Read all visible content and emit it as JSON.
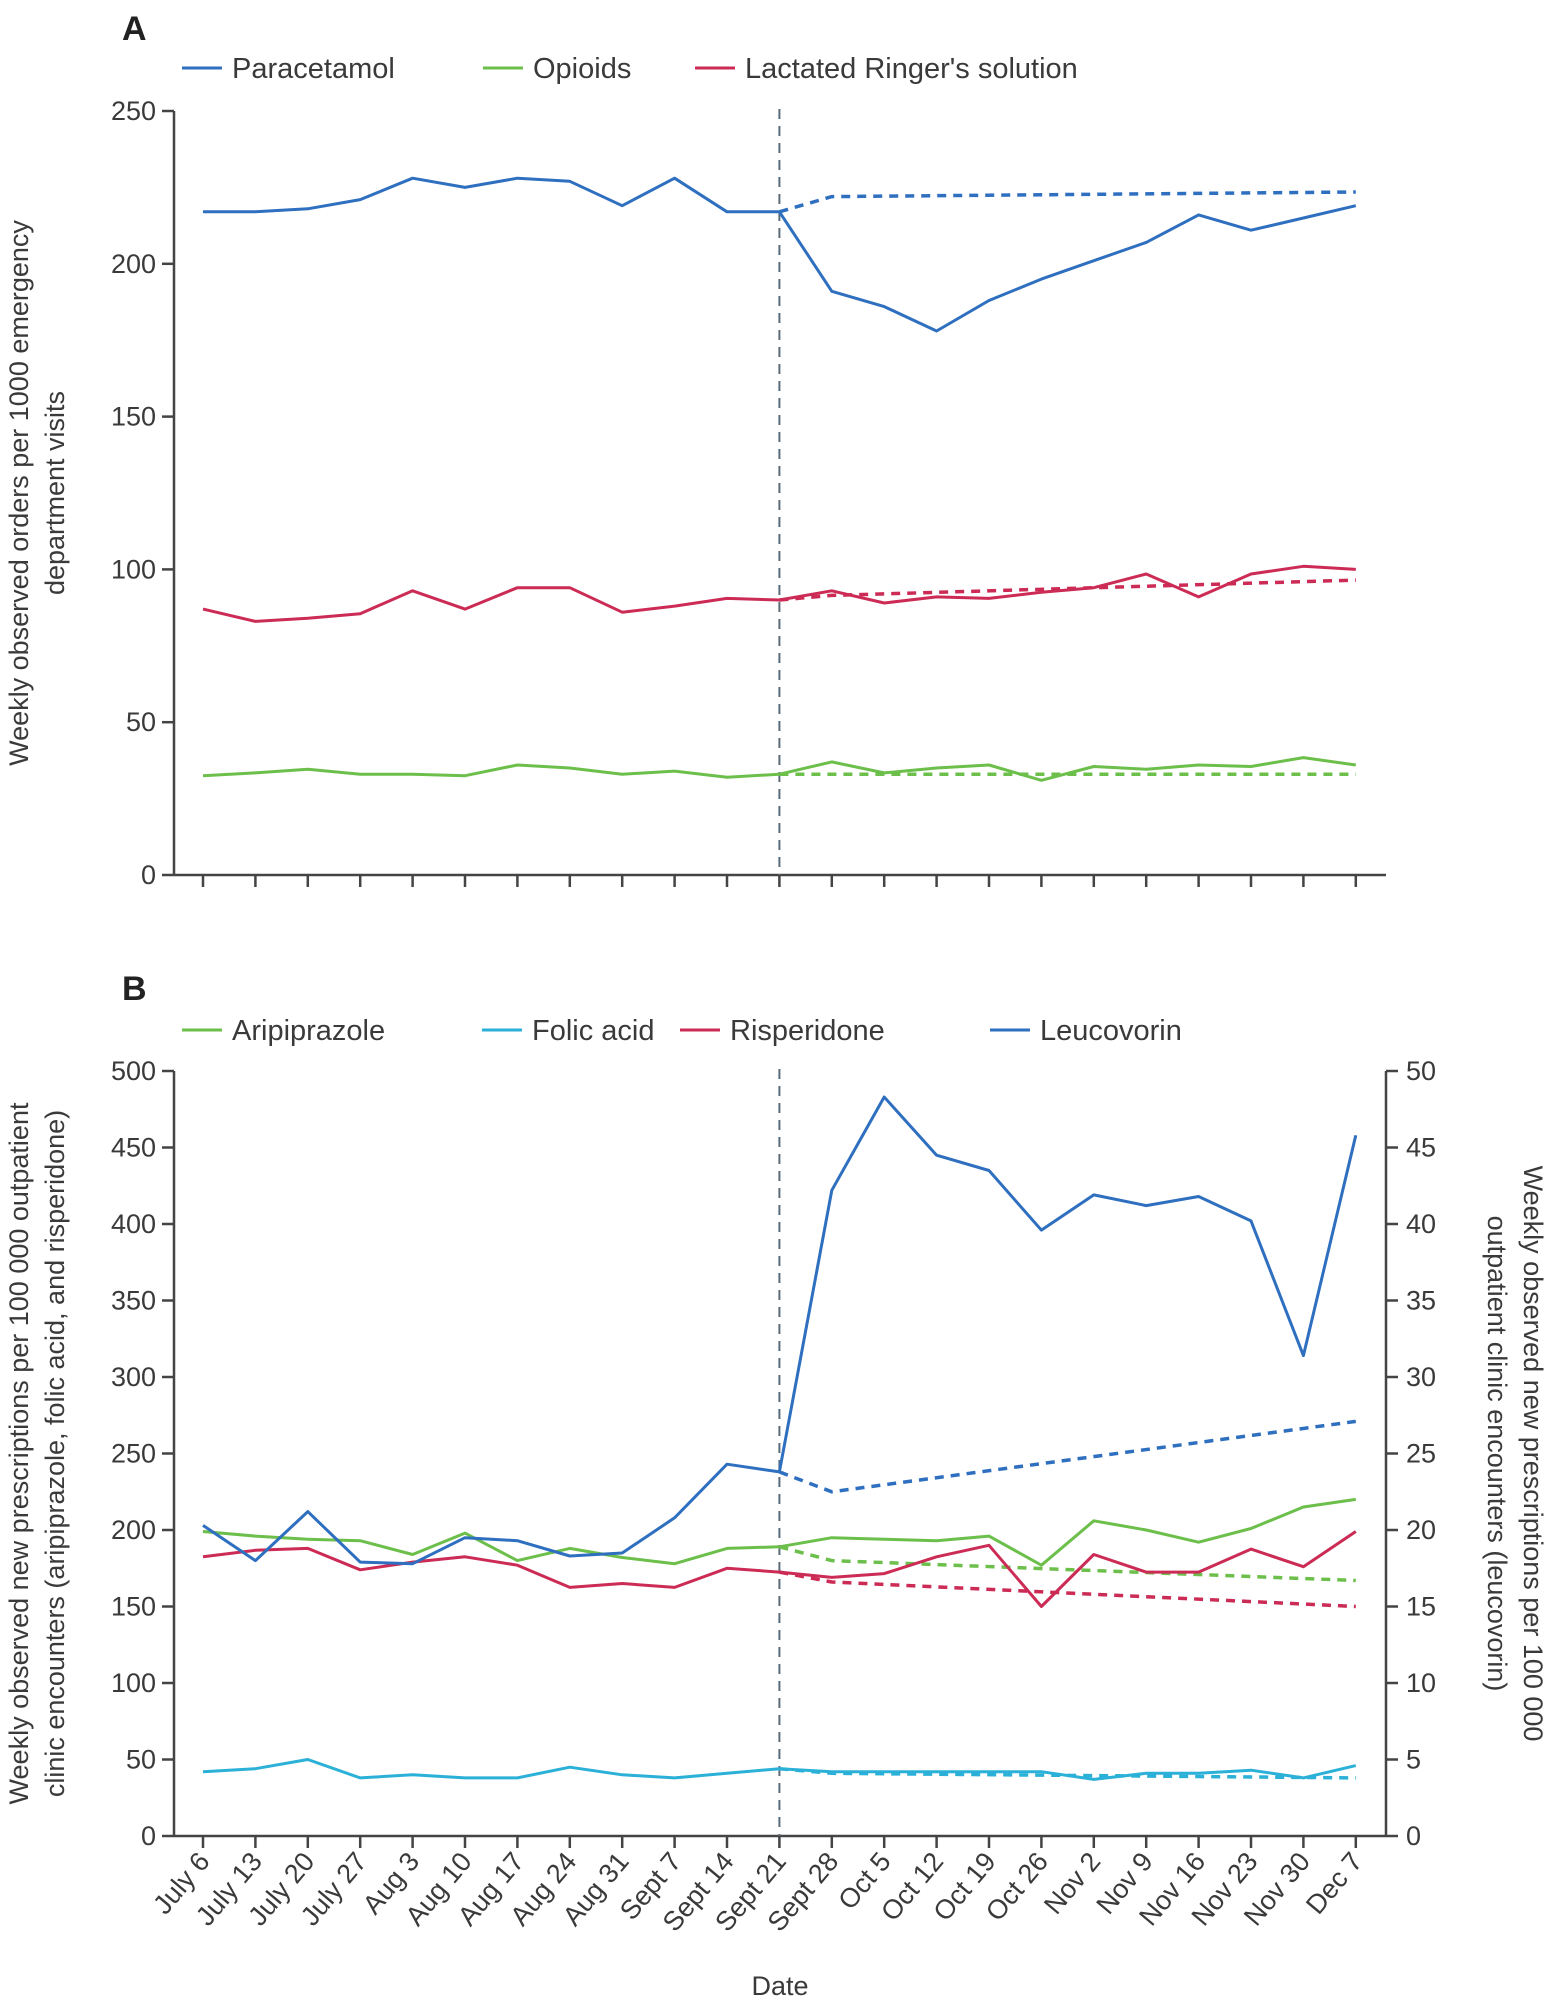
{
  "chart_data": [
    {
      "type": "line",
      "panel_label": "A",
      "title": "",
      "xlabel": "",
      "ylabel": "Weekly observed orders per 1000 emergency department visits",
      "ylim": [
        0,
        250
      ],
      "yticks": [
        0,
        50,
        100,
        150,
        200,
        250
      ],
      "x": [
        "July 6",
        "July 13",
        "July 20",
        "July 27",
        "Aug 3",
        "Aug 10",
        "Aug 17",
        "Aug 24",
        "Aug 31",
        "Sept 7",
        "Sept 14",
        "Sept 21",
        "Sept 28",
        "Oct 5",
        "Oct 12",
        "Oct 19",
        "Oct 26",
        "Nov 2",
        "Nov 9",
        "Nov 16",
        "Nov 23",
        "Nov 30",
        "Dec 7"
      ],
      "event_marker": "Sept 21",
      "legend_position": "top-left",
      "grid": false,
      "series": [
        {
          "name": "Paracetamol",
          "color": "#2f6fbf",
          "values": [
            217,
            217,
            218,
            221,
            228,
            225,
            228,
            227,
            219,
            228,
            217,
            217,
            191,
            186,
            178,
            188,
            195,
            201,
            207,
            216,
            211,
            215,
            219
          ],
          "counterfactual": {
            "x": [
              "Sept 21",
              "Sept 28",
              "Dec 7"
            ],
            "values": [
              217,
              222,
              223.5
            ]
          }
        },
        {
          "name": "Opioids",
          "color": "#6cbf4a",
          "values": [
            32.5,
            33.4,
            34.6,
            33,
            33,
            32.5,
            36,
            35,
            33,
            34,
            32,
            33,
            37,
            33.4,
            35,
            36,
            31,
            35.5,
            34.6,
            36,
            35.5,
            38.4,
            36
          ],
          "counterfactual": {
            "x": [
              "Sept 21",
              "Sept 28",
              "Dec 7"
            ],
            "values": [
              33,
              33,
              33
            ]
          }
        },
        {
          "name": "Lactated Ringer's solution",
          "color": "#cc2b55",
          "values": [
            87,
            83,
            84,
            85.5,
            93,
            87,
            94,
            94,
            86,
            88,
            90.5,
            90,
            93,
            89,
            91,
            90.5,
            92.5,
            94,
            98.5,
            91,
            98.5,
            101,
            100
          ],
          "counterfactual": {
            "x": [
              "Sept 21",
              "Sept 28",
              "Dec 7"
            ],
            "values": [
              90,
              91.5,
              96.5
            ]
          }
        }
      ]
    },
    {
      "type": "line",
      "panel_label": "B",
      "title": "",
      "xlabel": "Date",
      "ylabel": "Weekly observed new prescriptions per 100 000 outpatient clinic encounters (aripiprazole, folic acid, and risperidone)",
      "ylabel_right": "Weekly observed new prescriptions per 100 000 outpatient clinic encounters (leucovorin)",
      "ylim": [
        0,
        500
      ],
      "yticks": [
        0,
        50,
        100,
        150,
        200,
        250,
        300,
        350,
        400,
        450,
        500
      ],
      "ylim_right": [
        0,
        50
      ],
      "yticks_right": [
        0,
        5,
        10,
        15,
        20,
        25,
        30,
        35,
        40,
        45,
        50
      ],
      "x": [
        "July 6",
        "July 13",
        "July 20",
        "July 27",
        "Aug 3",
        "Aug 10",
        "Aug 17",
        "Aug 24",
        "Aug 31",
        "Sept 7",
        "Sept 14",
        "Sept 21",
        "Sept 28",
        "Oct 5",
        "Oct 12",
        "Oct 19",
        "Oct 26",
        "Nov 2",
        "Nov 9",
        "Nov 16",
        "Nov 23",
        "Nov 30",
        "Dec 7"
      ],
      "event_marker": "Sept 21",
      "legend_position": "top-left",
      "grid": false,
      "series": [
        {
          "name": "Aripiprazole",
          "color": "#6cbf4a",
          "axis": "left",
          "values": [
            199,
            196,
            194,
            193,
            184,
            198,
            180,
            188,
            182,
            178,
            188,
            189,
            195,
            194,
            193,
            196,
            177,
            206,
            200,
            192,
            201,
            215,
            220
          ],
          "counterfactual": {
            "x": [
              "Sept 21",
              "Sept 28",
              "Dec 7"
            ],
            "values": [
              189,
              180,
              167
            ]
          }
        },
        {
          "name": "Folic acid",
          "color": "#2bb0d8",
          "axis": "left",
          "values": [
            42,
            44,
            50,
            38,
            40,
            38,
            38,
            45,
            40,
            38,
            41,
            44,
            42,
            42,
            42,
            42,
            42,
            37,
            41,
            41,
            43,
            38,
            46
          ],
          "counterfactual": {
            "x": [
              "Sept 21",
              "Sept 28",
              "Dec 7"
            ],
            "values": [
              44,
              41,
              38
            ]
          }
        },
        {
          "name": "Risperidone",
          "color": "#cc2b55",
          "axis": "left",
          "values": [
            182.5,
            186.7,
            188,
            174,
            179,
            182.5,
            177,
            162.5,
            165,
            162.5,
            175,
            172.5,
            169,
            171.5,
            182.5,
            190,
            150,
            184,
            172.5,
            172.5,
            187.5,
            176,
            199
          ],
          "counterfactual": {
            "x": [
              "Sept 21",
              "Sept 28",
              "Dec 7"
            ],
            "values": [
              172.5,
              166,
              150
            ]
          }
        },
        {
          "name": "Leucovorin",
          "color": "#2f6fbf",
          "axis": "right",
          "values": [
            20.3,
            18,
            21.2,
            17.9,
            17.8,
            19.5,
            19.3,
            18.3,
            18.5,
            20.8,
            24.3,
            23.8,
            42.2,
            48.3,
            44.5,
            43.5,
            39.6,
            41.9,
            41.2,
            41.8,
            40.2,
            31.4,
            45.8
          ],
          "counterfactual": {
            "x": [
              "Sept 21",
              "Sept 28",
              "Dec 7"
            ],
            "values": [
              23.8,
              22.5,
              27.1
            ]
          }
        }
      ]
    }
  ]
}
